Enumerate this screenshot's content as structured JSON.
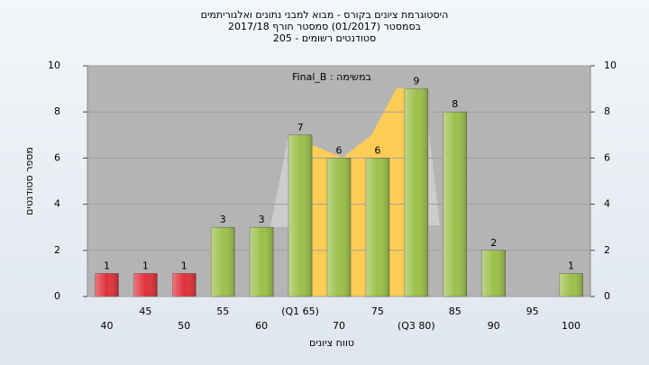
{
  "chart_data": {
    "type": "bar",
    "title": [
      "היסטוגרמת ציונים בקורס - מבוא למבני נתונים ואלגוריתמים",
      "בסמסטר (01/2017) סמסטר חורף 2017/18",
      "סטודנטים רשומים - 205"
    ],
    "annotation": "במשימה : Final_B",
    "x_label": "טווח ציונים",
    "y_label": "מספר סטודנטים",
    "categories": [
      "40",
      "45",
      "50",
      "55",
      "60",
      "(Q1 65)",
      "70",
      "75",
      "(Q3 80)",
      "85",
      "90",
      "95",
      "100"
    ],
    "values": [
      1,
      1,
      1,
      3,
      3,
      7,
      6,
      6,
      9,
      8,
      2,
      null,
      1
    ],
    "colors": [
      "#e0323a",
      "#e0323a",
      "#e0323a",
      "#9cc04a",
      "#9cc04a",
      "#9cc04a",
      "#9cc04a",
      "#9cc04a",
      "#9cc04a",
      "#9cc04a",
      "#9cc04a",
      "#9cc04a",
      "#9cc04a"
    ],
    "ylim": [
      0,
      10
    ],
    "yticks": [
      0,
      2,
      4,
      6,
      8,
      10
    ],
    "y2lim": [
      0,
      10
    ],
    "y2ticks": [
      0,
      2,
      4,
      6,
      8,
      10
    ],
    "grid": true
  }
}
